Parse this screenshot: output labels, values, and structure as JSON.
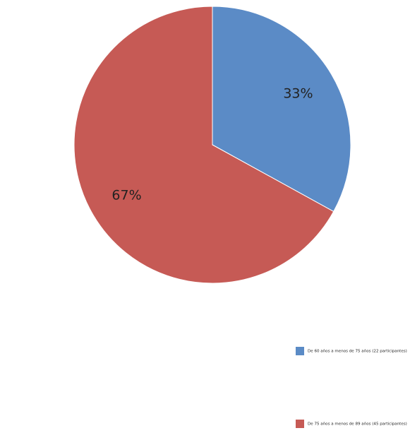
{
  "chart_data": {
    "type": "pie",
    "categories": [
      "De 60 años a menos de 75 años (22 participantes)",
      "De 75 años a menos de 89 años (45 participantes)"
    ],
    "values": [
      33,
      67
    ],
    "value_labels": [
      "33%",
      "67%"
    ],
    "colors": [
      "#5b8bc6",
      "#c65a55"
    ]
  }
}
